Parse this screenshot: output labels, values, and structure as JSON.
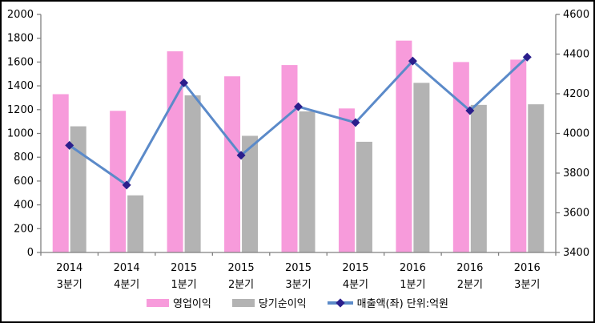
{
  "chart_data": {
    "type": "combo-bar-line",
    "title": "",
    "categories": [
      {
        "year": "2014",
        "quarter": "3분기"
      },
      {
        "year": "2014",
        "quarter": "4분기"
      },
      {
        "year": "2015",
        "quarter": "1분기"
      },
      {
        "year": "2015",
        "quarter": "2분기"
      },
      {
        "year": "2015",
        "quarter": "3분기"
      },
      {
        "year": "2015",
        "quarter": "4분기"
      },
      {
        "year": "2016",
        "quarter": "1분기"
      },
      {
        "year": "2016",
        "quarter": "2분기"
      },
      {
        "year": "2016",
        "quarter": "3분기"
      }
    ],
    "series": [
      {
        "name": "영업이익",
        "type": "bar",
        "axis": "left",
        "color": "#F79BDB",
        "values": [
          1330,
          1190,
          1690,
          1480,
          1575,
          1210,
          1780,
          1600,
          1620
        ]
      },
      {
        "name": "당기순이익",
        "type": "bar",
        "axis": "left",
        "color": "#B3B3B3",
        "values": [
          1060,
          480,
          1320,
          980,
          1185,
          930,
          1425,
          1240,
          1245
        ]
      },
      {
        "name": "매출액(좌) 단위:억원",
        "type": "line",
        "axis": "right",
        "color": "#5B8AC9",
        "marker": "diamond",
        "marker_color": "#2B1E8C",
        "values": [
          3940,
          3740,
          4255,
          3890,
          4135,
          4055,
          4365,
          4115,
          4385
        ]
      }
    ],
    "left_axis": {
      "min": 0,
      "max": 2000,
      "step": 200,
      "ticks": [
        0,
        200,
        400,
        600,
        800,
        1000,
        1200,
        1400,
        1600,
        1800,
        2000
      ]
    },
    "right_axis": {
      "min": 3400,
      "max": 4600,
      "step": 200,
      "ticks": [
        3400,
        3600,
        3800,
        4000,
        4200,
        4400,
        4600
      ]
    },
    "grid": false,
    "legend_position": "bottom",
    "axis_color": "#808080",
    "text_color": "#000000"
  }
}
